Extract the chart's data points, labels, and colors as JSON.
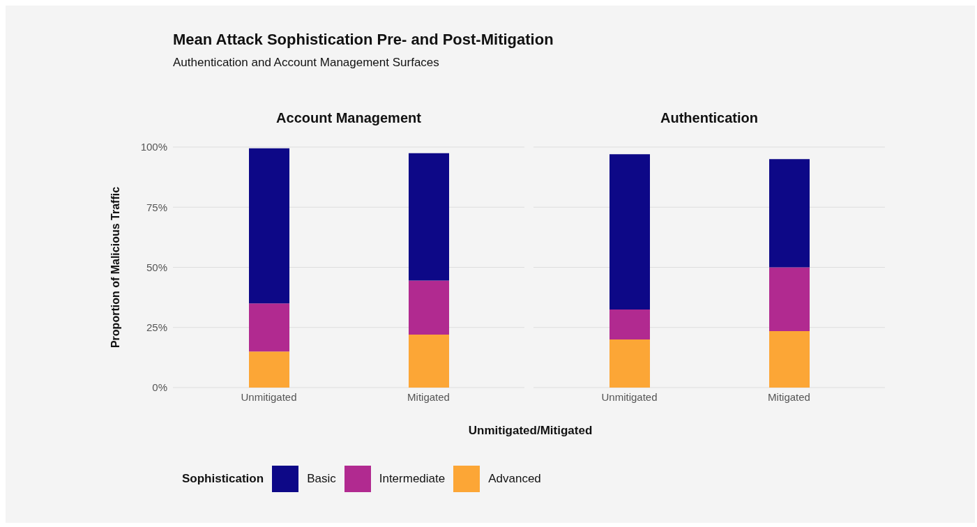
{
  "chart_data": [
    {
      "type": "bar",
      "title": "Account Management",
      "annotations": [
        "Mean Attack Sophistication Pre- and Post-Mitigation",
        "Authentication and Account Management Surfaces"
      ],
      "xlabel": "Unmitigated/Mitigated",
      "ylabel": "Proportion of Malicious Traffic",
      "legend_title": "Sophistication",
      "legend": "bottom",
      "stacked": true,
      "grid": "y",
      "categories": [
        "Unmitigated",
        "Mitigated"
      ],
      "ylim": [
        0,
        100
      ],
      "yticks": [
        {
          "value": 0,
          "label": "0%"
        },
        {
          "value": 25,
          "label": "25%"
        },
        {
          "value": 50,
          "label": "50%"
        },
        {
          "value": 75,
          "label": "75%"
        },
        {
          "value": 100,
          "label": "100%"
        }
      ],
      "series": [
        {
          "name": "Advanced",
          "color": "#fca636",
          "values": [
            15,
            22
          ]
        },
        {
          "name": "Intermediate",
          "color": "#b12a90",
          "values": [
            20,
            22.5
          ]
        },
        {
          "name": "Basic",
          "color": "#0d0887",
          "values": [
            64.5,
            53
          ]
        }
      ]
    },
    {
      "type": "bar",
      "title": "Authentication",
      "stacked": true,
      "grid": "y",
      "tick_labels": "x",
      "categories": [
        "Unmitigated",
        "Mitigated"
      ],
      "ylim": [
        0,
        100
      ],
      "yticks": [
        {
          "value": 0,
          "label": null
        },
        {
          "value": 25,
          "label": null
        },
        {
          "value": 50,
          "label": null
        },
        {
          "value": 75,
          "label": null
        },
        {
          "value": 100,
          "label": null
        }
      ],
      "series": [
        {
          "color": "#fca636",
          "values": [
            20,
            23.5
          ]
        },
        {
          "color": "#b12a90",
          "values": [
            12.5,
            26.5
          ]
        },
        {
          "color": "#0d0887",
          "values": [
            64.5,
            45
          ]
        }
      ]
    }
  ]
}
